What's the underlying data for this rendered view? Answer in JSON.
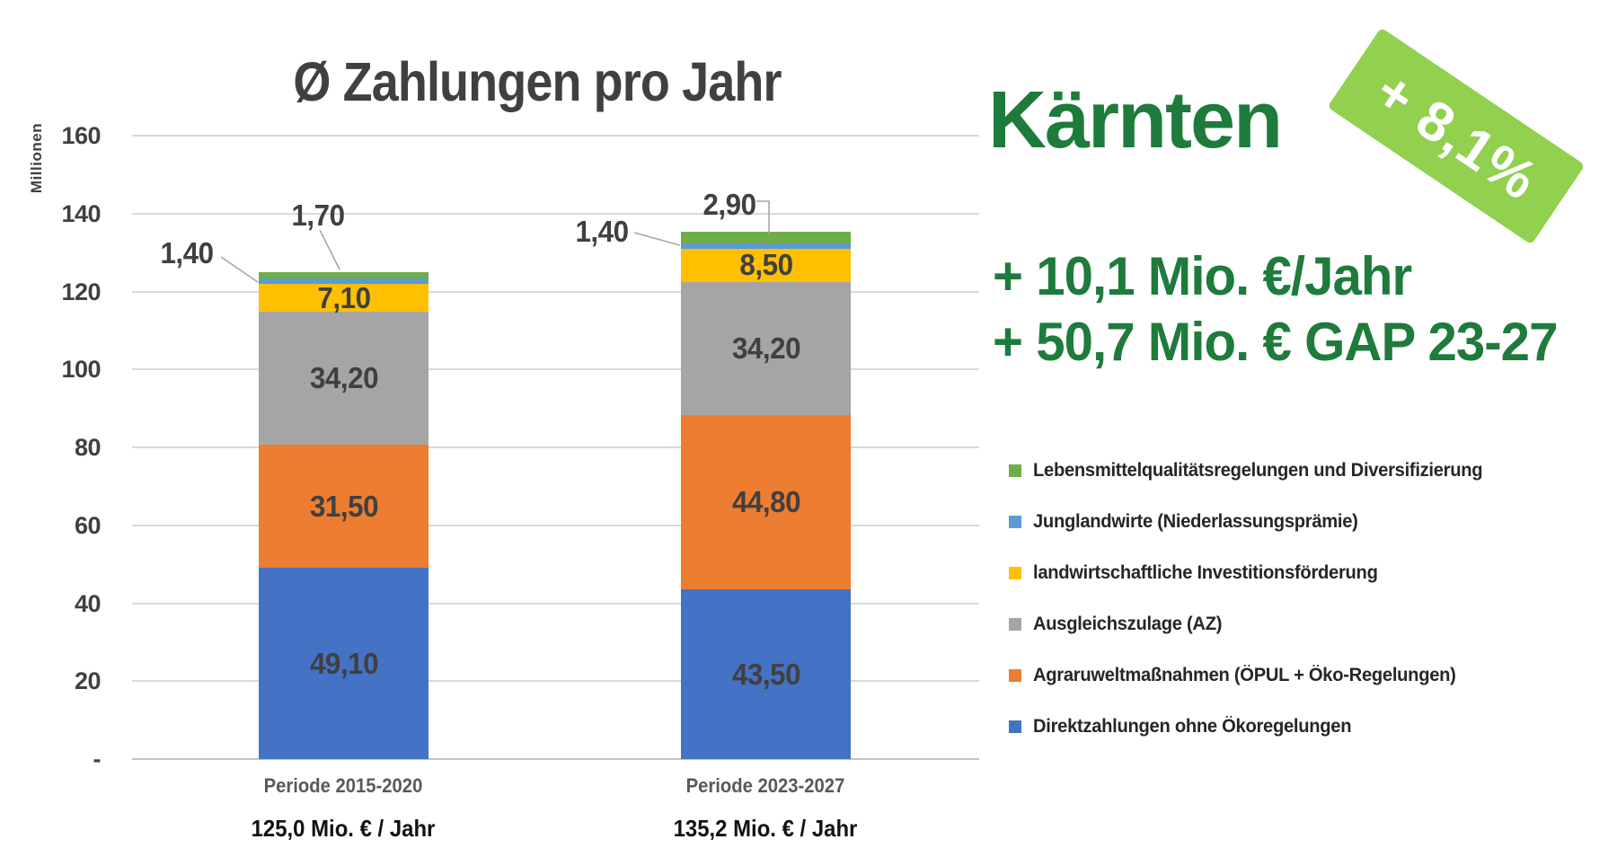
{
  "chart_data": {
    "type": "stacked-bar",
    "title": "Ø Zahlungen pro Jahr",
    "y_axis_title": "Millionen",
    "ylim": [
      0,
      160
    ],
    "grid": true,
    "y_ticks": [
      {
        "label": "160",
        "value": 160
      },
      {
        "label": "140",
        "value": 140
      },
      {
        "label": "120",
        "value": 120
      },
      {
        "label": "100",
        "value": 100
      },
      {
        "label": "80",
        "value": 80
      },
      {
        "label": "60",
        "value": 60
      },
      {
        "label": "40",
        "value": 40
      },
      {
        "label": "20",
        "value": 20
      },
      {
        "label": "-",
        "value": 0
      }
    ],
    "categories": [
      "Periode 2015-2020",
      "Periode 2023-2027"
    ],
    "totals": [
      "125,0 Mio. € / Jahr",
      "135,2 Mio. € / Jahr"
    ],
    "total_values": [
      125.0,
      135.2
    ],
    "series": [
      {
        "name": "Direktzahlungen ohne Ökoregelungen",
        "color": "#4472C4",
        "values": [
          49.1,
          43.5
        ],
        "labels": [
          "49,10",
          "43,50"
        ],
        "callout": false
      },
      {
        "name": "Agraruweltmaßnahmen (ÖPUL + Öko-Regelungen)",
        "color": "#ED7D31",
        "values": [
          31.5,
          44.8
        ],
        "labels": [
          "31,50",
          "44,80"
        ],
        "callout": false
      },
      {
        "name": "Ausgleichszulage (AZ)",
        "color": "#A5A5A5",
        "values": [
          34.2,
          34.2
        ],
        "labels": [
          "34,20",
          "34,20"
        ],
        "callout": false
      },
      {
        "name": "landwirtschaftliche Investitionsförderung",
        "color": "#FFC000",
        "values": [
          7.1,
          8.5
        ],
        "labels": [
          "7,10",
          "8,50"
        ],
        "callout": false
      },
      {
        "name": "Junglandwirte (Niederlassungsprämie)",
        "color": "#5B9BD5",
        "values": [
          1.4,
          1.4
        ],
        "labels": [
          "1,40",
          "1,40"
        ],
        "callout": true
      },
      {
        "name": "Lebensmittelqualitätsregelungen und Diversifizierung",
        "color": "#70AD47",
        "values": [
          1.7,
          2.9
        ],
        "labels": [
          "1,70",
          "2,90"
        ],
        "callout": true
      }
    ]
  },
  "panel": {
    "region": "Kärnten",
    "badge": "+ 8,1%",
    "line1": "+ 10,1 Mio. €/Jahr",
    "line2": "+ 50,7 Mio. € GAP 23-27",
    "accent_green": "#1E7B3C",
    "badge_green": "#92D050",
    "legend": [
      {
        "color": "#70AD47",
        "label": "Lebensmittelqualitätsregelungen und Diversifizierung"
      },
      {
        "color": "#5B9BD5",
        "label": "Junglandwirte (Niederlassungsprämie)"
      },
      {
        "color": "#FFC000",
        "label": "landwirtschaftliche Investitionsförderung"
      },
      {
        "color": "#A5A5A5",
        "label": "Ausgleichszulage (AZ)"
      },
      {
        "color": "#ED7D31",
        "label": "Agraruweltmaßnahmen (ÖPUL + Öko-Regelungen)"
      },
      {
        "color": "#4472C4",
        "label": "Direktzahlungen ohne Ökoregelungen"
      }
    ]
  }
}
